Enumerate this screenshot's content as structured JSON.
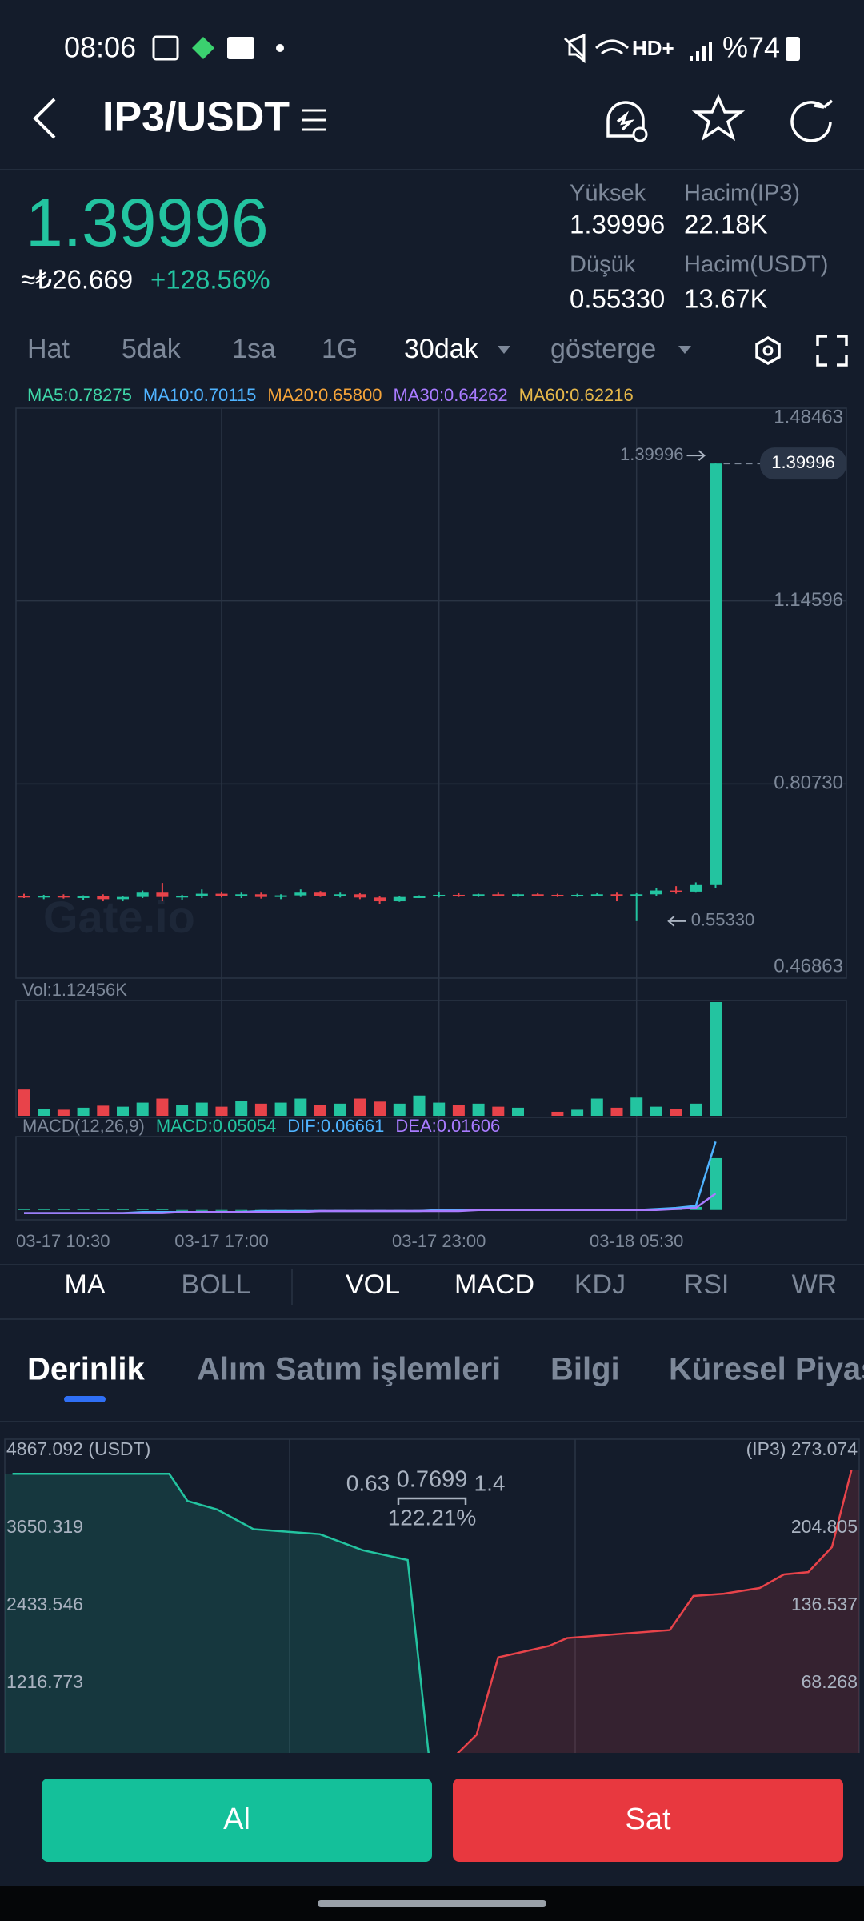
{
  "status_bar": {
    "time": "08:06",
    "network": "HD+",
    "battery": "%74"
  },
  "header": {
    "pair": "IP3/USDT"
  },
  "ticker": {
    "price": "1.39996",
    "price_try": "≈₺26.669",
    "change": "+128.56%",
    "stats": [
      {
        "label": "Yüksek",
        "value": "1.39996"
      },
      {
        "label": "Hacim(IP3)",
        "value": "22.18K"
      },
      {
        "label": "Düşük",
        "value": "0.55330"
      },
      {
        "label": "Hacim(USDT)",
        "value": "13.67K"
      }
    ]
  },
  "timeframes": [
    "Hat",
    "5dak",
    "1sa",
    "1G",
    "30dak",
    "gösterge"
  ],
  "ma_legend": [
    {
      "label": "MA5:0.78275",
      "color": "#3fd6a8"
    },
    {
      "label": "MA10:0.70115",
      "color": "#4fb3ff"
    },
    {
      "label": "MA20:0.65800",
      "color": "#f5a43a"
    },
    {
      "label": "MA30:0.64262",
      "color": "#a97bff"
    },
    {
      "label": "MA60:0.62216",
      "color": "#e6b84a"
    }
  ],
  "indicator_tabs": [
    "MA",
    "BOLL",
    "VOL",
    "MACD",
    "KDJ",
    "RSI",
    "WR"
  ],
  "section_tabs": [
    "Derinlik",
    "Alım Satım işlemleri",
    "Bilgi",
    "Küresel Piyas"
  ],
  "buttons": {
    "buy": "Al",
    "sell": "Sat"
  },
  "chart_data": [
    {
      "type": "candlestick",
      "up_color": "#23c4a0",
      "down_color": "#e8434a",
      "categories": [
        "03-17 10:30",
        null,
        null,
        null,
        null,
        null,
        null,
        null,
        null,
        null,
        "03-17 17:00",
        null,
        null,
        null,
        null,
        null,
        null,
        null,
        null,
        null,
        null,
        "03-17 23:00",
        null,
        null,
        null,
        null,
        null,
        null,
        null,
        null,
        null,
        "03-18 05:30",
        null,
        null,
        null,
        null
      ],
      "open": [
        0.6,
        0.598,
        0.6,
        0.597,
        0.599,
        0.594,
        0.598,
        0.606,
        0.598,
        0.6,
        0.604,
        0.6,
        0.603,
        0.598,
        0.601,
        0.606,
        0.6,
        0.603,
        0.597,
        0.59,
        0.598,
        0.599,
        0.602,
        0.6,
        0.603,
        0.601,
        0.603,
        0.602,
        0.6,
        0.602,
        0.603,
        0.6,
        0.603,
        0.61,
        0.608,
        0.62
      ],
      "high": [
        0.604,
        0.602,
        0.603,
        0.601,
        0.603,
        0.6,
        0.61,
        0.624,
        0.602,
        0.612,
        0.608,
        0.606,
        0.606,
        0.603,
        0.612,
        0.609,
        0.606,
        0.605,
        0.6,
        0.6,
        0.601,
        0.608,
        0.605,
        0.604,
        0.606,
        0.604,
        0.605,
        0.604,
        0.604,
        0.605,
        0.606,
        0.605,
        0.615,
        0.618,
        0.625,
        1.39996
      ],
      "low": [
        0.596,
        0.594,
        0.595,
        0.593,
        0.59,
        0.59,
        0.596,
        0.59,
        0.592,
        0.596,
        0.597,
        0.596,
        0.595,
        0.594,
        0.598,
        0.598,
        0.597,
        0.594,
        0.585,
        0.589,
        0.596,
        0.597,
        0.598,
        0.598,
        0.6,
        0.598,
        0.6,
        0.598,
        0.598,
        0.599,
        0.59,
        0.5533,
        0.6,
        0.604,
        0.606,
        0.615
      ],
      "close": [
        0.598,
        0.6,
        0.597,
        0.599,
        0.594,
        0.598,
        0.606,
        0.598,
        0.6,
        0.604,
        0.6,
        0.603,
        0.598,
        0.601,
        0.606,
        0.6,
        0.603,
        0.597,
        0.59,
        0.598,
        0.599,
        0.602,
        0.6,
        0.603,
        0.601,
        0.603,
        0.602,
        0.6,
        0.602,
        0.603,
        0.6,
        0.603,
        0.61,
        0.608,
        0.62,
        1.39996
      ],
      "ylim": [
        0.46863,
        1.48463
      ],
      "yticks": [
        1.48463,
        1.14596,
        {
          "value": 0.8073,
          "label": "0.80730"
        },
        0.46863
      ],
      "grid": true,
      "annotations": {
        "high": "1.39996",
        "low": "0.55330",
        "last": "1.39996"
      }
    },
    {
      "type": "volume",
      "title": "Vol:1.12456K",
      "values": [
        260,
        70,
        60,
        80,
        100,
        90,
        130,
        170,
        110,
        130,
        90,
        150,
        120,
        130,
        170,
        110,
        120,
        170,
        140,
        120,
        200,
        130,
        110,
        120,
        90,
        80,
        0,
        40,
        60,
        170,
        80,
        180,
        90,
        70,
        120,
        1124.56
      ]
    },
    {
      "type": "macd",
      "title": "MACD(12,26,9)",
      "ylim": [
        -0.008,
        0.07
      ],
      "series": [
        {
          "name": "MACD:0.05054",
          "color": "#23c4a0",
          "style": "bar",
          "values": [
            0.001,
            0.001,
            0.001,
            0.001,
            0.001,
            0.001,
            0.001,
            0.001,
            0,
            0,
            0,
            0,
            0,
            0,
            0,
            0,
            0,
            0,
            0,
            0,
            0,
            0,
            0,
            0,
            0,
            0,
            0,
            0,
            0,
            0,
            0,
            0,
            0.001,
            0.002,
            0.003,
            0.05054
          ]
        },
        {
          "name": "DIF:0.06661",
          "color": "#4fb3ff",
          "style": "line",
          "values": [
            -0.003,
            -0.003,
            -0.003,
            -0.003,
            -0.003,
            -0.003,
            -0.002,
            -0.002,
            -0.002,
            -0.002,
            -0.002,
            -0.002,
            -0.001,
            -0.001,
            -0.001,
            -0.001,
            -0.001,
            -0.001,
            -0.001,
            -0.001,
            -0.001,
            0,
            0,
            0,
            0,
            0,
            0,
            0,
            0,
            0,
            0,
            0,
            0.001,
            0.002,
            0.004,
            0.06661
          ]
        },
        {
          "name": "DEA:0.01606",
          "color": "#a97bff",
          "style": "line",
          "values": [
            -0.003,
            -0.003,
            -0.003,
            -0.003,
            -0.003,
            -0.003,
            -0.003,
            -0.003,
            -0.002,
            -0.002,
            -0.002,
            -0.002,
            -0.002,
            -0.002,
            -0.002,
            -0.001,
            -0.001,
            -0.001,
            -0.001,
            -0.001,
            -0.001,
            -0.001,
            -0.001,
            0,
            0,
            0,
            0,
            0,
            0,
            0,
            0,
            0,
            0,
            0.001,
            0.002,
            0.01606
          ]
        }
      ]
    },
    {
      "type": "depth",
      "xlim": [
        0.14,
        1.4
      ],
      "ylim": [
        0,
        4867.092
      ],
      "y2lim": [
        0,
        273.074
      ],
      "yticks": [
        {
          "value": 4867.092,
          "label": "4867.092 (USDT)"
        },
        3650.319,
        2433.546,
        1216.773
      ],
      "y2ticks": [
        {
          "value": 273.074,
          "label": "(IP3) 273.074"
        },
        204.805,
        136.537,
        68.268
      ],
      "annotations": [
        "0.63",
        "0.7699",
        "1.4",
        "122.21%"
      ],
      "series": [
        {
          "name": "bids",
          "color": "#23c4a0",
          "x": [
            0.149,
            0.381,
            0.408,
            0.452,
            0.506,
            0.604,
            0.667,
            0.734,
            0.765
          ],
          "values": [
            4500,
            4500,
            4075,
            3940,
            3631,
            3554,
            3303,
            3148,
            117
          ]
        },
        {
          "name": "asks",
          "color": "#e8434a",
          "axis": "y2",
          "x": [
            0.804,
            0.836,
            0.868,
            0.943,
            0.97,
            1.122,
            1.157,
            1.202,
            1.255,
            1.291,
            1.327,
            1.362,
            1.391
          ],
          "values": [
            4.3,
            23,
            91,
            101,
            108,
            115,
            145,
            147,
            152,
            164,
            166,
            188,
            256
          ]
        }
      ]
    }
  ]
}
